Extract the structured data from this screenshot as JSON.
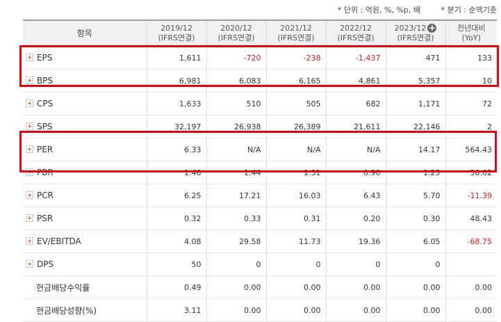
{
  "notes": {
    "unit": "* 단위 : 억원, %, %p, 배",
    "basis": "* 분기 : 순액기준"
  },
  "header": {
    "item": "항목",
    "columns": [
      {
        "line1": "2019/12",
        "line2": "(IFRS연결)"
      },
      {
        "line1": "2020/12",
        "line2": "(IFRS연결)"
      },
      {
        "line1": "2021/12",
        "line2": "(IFRS연결)"
      },
      {
        "line1": "2022/12",
        "line2": "(IFRS연결)"
      },
      {
        "line1": "2023/12",
        "line2": "(IFRS연결)"
      },
      {
        "line1": "전년대비",
        "line2": "(YoY)"
      }
    ]
  },
  "rows": [
    {
      "label": "EPS",
      "expandable": true,
      "values": [
        "1,611",
        "-720",
        "-238",
        "-1,437",
        "471",
        "133"
      ]
    },
    {
      "label": "BPS",
      "expandable": true,
      "values": [
        "6,981",
        "6,083",
        "6,165",
        "4,861",
        "5,357",
        "10"
      ]
    },
    {
      "label": "CPS",
      "expandable": true,
      "values": [
        "1,633",
        "510",
        "505",
        "682",
        "1,171",
        "72"
      ]
    },
    {
      "label": "SPS",
      "expandable": true,
      "values": [
        "32,197",
        "26,938",
        "26,389",
        "21,611",
        "22,146",
        "2"
      ]
    },
    {
      "label": "PER",
      "expandable": true,
      "values": [
        "6.33",
        "N/A",
        "N/A",
        "N/A",
        "14.17",
        "564.43"
      ]
    },
    {
      "label": "PBR",
      "expandable": true,
      "values": [
        "1.46",
        "1.44",
        "1.31",
        "0.90",
        "1.25",
        "38.02"
      ]
    },
    {
      "label": "PCR",
      "expandable": true,
      "values": [
        "6.25",
        "17.21",
        "16.03",
        "6.43",
        "5.70",
        "-11.39"
      ]
    },
    {
      "label": "PSR",
      "expandable": true,
      "values": [
        "0.32",
        "0.33",
        "0.31",
        "0.20",
        "0.30",
        "48.43"
      ]
    },
    {
      "label": "EV/EBITDA",
      "expandable": true,
      "values": [
        "4.08",
        "29.58",
        "11.73",
        "19.36",
        "6.05",
        "-68.75"
      ]
    },
    {
      "label": "DPS",
      "expandable": true,
      "values": [
        "50",
        "0",
        "0",
        "0",
        "0",
        ""
      ]
    },
    {
      "label": "현금배당수익률",
      "expandable": false,
      "values": [
        "0.49",
        "0.00",
        "0.00",
        "0.00",
        "0.00",
        "0.00"
      ]
    },
    {
      "label": "현금배당성향(%)",
      "expandable": false,
      "values": [
        "3.11",
        "0.00",
        "0.00",
        "0.00",
        "0.00",
        "0.00"
      ]
    }
  ],
  "colors": {
    "highlight": "#e3000f",
    "negative": "#d21f1f",
    "expand_icon": "#e8672a"
  },
  "icons": {
    "expand": "plus-box-icon",
    "more": "plus-circle-icon"
  }
}
